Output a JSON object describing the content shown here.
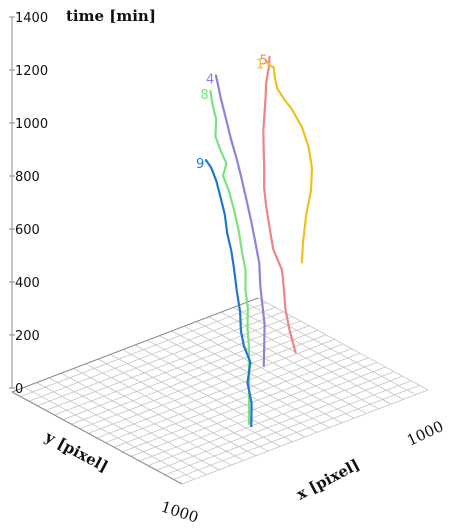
{
  "chart_data": {
    "type": "line",
    "title": "",
    "z_axis": {
      "label": "time [min]",
      "ticks": [
        0,
        200,
        400,
        600,
        800,
        1000,
        1200,
        1400
      ],
      "range": [
        0,
        1400
      ]
    },
    "x_axis": {
      "label": "x [pixel]",
      "tick_label": "1000",
      "range": [
        0,
        1000
      ]
    },
    "y_axis": {
      "label": "y [pixel]",
      "tick_label": "1000",
      "range": [
        0,
        1000
      ]
    },
    "grid": true,
    "series": [
      {
        "name": "8",
        "color": "#7fe07f",
        "points": [
          [
            425,
            780,
            0
          ],
          [
            425,
            780,
            100
          ],
          [
            428,
            775,
            200
          ],
          [
            430,
            770,
            300
          ],
          [
            424,
            772,
            360
          ],
          [
            430,
            765,
            430
          ],
          [
            422,
            762,
            500
          ],
          [
            428,
            755,
            570
          ],
          [
            418,
            748,
            640
          ],
          [
            410,
            740,
            720
          ],
          [
            398,
            730,
            800
          ],
          [
            386,
            718,
            870
          ],
          [
            370,
            706,
            930
          ],
          [
            380,
            712,
            975
          ],
          [
            362,
            700,
            1030
          ],
          [
            350,
            690,
            1080
          ],
          [
            356,
            686,
            1140
          ],
          [
            346,
            678,
            1200
          ],
          [
            340,
            675,
            1250
          ]
        ]
      },
      {
        "name": "9",
        "color": "#1f78c8",
        "points": [
          [
            420,
            800,
            0
          ],
          [
            428,
            790,
            80
          ],
          [
            415,
            785,
            160
          ],
          [
            430,
            780,
            230
          ],
          [
            405,
            778,
            300
          ],
          [
            395,
            775,
            360
          ],
          [
            395,
            770,
            430
          ],
          [
            385,
            765,
            510
          ],
          [
            378,
            760,
            590
          ],
          [
            372,
            752,
            660
          ],
          [
            360,
            745,
            730
          ],
          [
            355,
            738,
            800
          ],
          [
            340,
            730,
            880
          ],
          [
            330,
            725,
            930
          ],
          [
            318,
            712,
            980
          ],
          [
            305,
            700,
            1010
          ]
        ]
      },
      {
        "name": "4",
        "color": "#8e84d6",
        "points": [
          [
            540,
            700,
            150
          ],
          [
            545,
            695,
            220
          ],
          [
            550,
            690,
            300
          ],
          [
            548,
            680,
            370
          ],
          [
            545,
            672,
            440
          ],
          [
            548,
            662,
            520
          ],
          [
            540,
            650,
            600
          ],
          [
            532,
            636,
            680
          ],
          [
            522,
            622,
            760
          ],
          [
            512,
            608,
            840
          ],
          [
            502,
            594,
            910
          ],
          [
            490,
            580,
            980
          ],
          [
            478,
            566,
            1060
          ],
          [
            466,
            552,
            1140
          ],
          [
            456,
            540,
            1220
          ]
        ]
      },
      {
        "name": "5",
        "color": "#ef8585",
        "points": [
          [
            710,
            640,
            120
          ],
          [
            700,
            620,
            200
          ],
          [
            690,
            610,
            280
          ],
          [
            690,
            600,
            360
          ],
          [
            690,
            590,
            420
          ],
          [
            668,
            570,
            500
          ],
          [
            660,
            560,
            580
          ],
          [
            652,
            552,
            660
          ],
          [
            648,
            545,
            730
          ],
          [
            652,
            540,
            800
          ],
          [
            650,
            540,
            870
          ],
          [
            652,
            535,
            940
          ],
          [
            660,
            530,
            1000
          ],
          [
            666,
            528,
            1060
          ],
          [
            670,
            525,
            1110
          ],
          [
            684,
            520,
            1160
          ],
          [
            690,
            517,
            1200
          ]
        ]
      },
      {
        "name": "1",
        "color": "#f0c020",
        "points": [
          [
            795,
            555,
            400
          ],
          [
            810,
            540,
            470
          ],
          [
            830,
            530,
            560
          ],
          [
            850,
            528,
            640
          ],
          [
            860,
            520,
            720
          ],
          [
            852,
            512,
            800
          ],
          [
            830,
            505,
            880
          ],
          [
            792,
            500,
            960
          ],
          [
            760,
            500,
            1010
          ],
          [
            730,
            505,
            1060
          ],
          [
            725,
            498,
            1100
          ],
          [
            722,
            495,
            1140
          ],
          [
            700,
            500,
            1160
          ],
          [
            688,
            498,
            1180
          ]
        ]
      }
    ]
  }
}
